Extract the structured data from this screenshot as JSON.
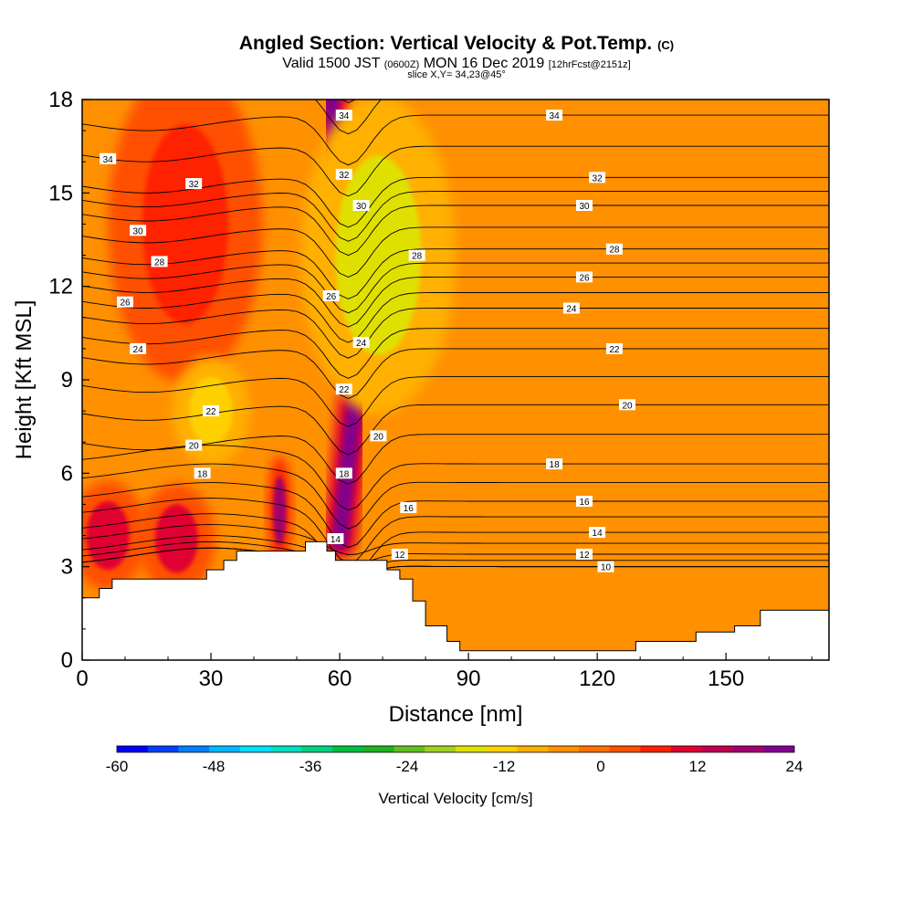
{
  "header": {
    "title_main": "Angled Section: Vertical Velocity & Pot.Temp.",
    "title_tag": "(C)",
    "valid_prefix": "Valid 1500 JST",
    "valid_utc": "(0600Z)",
    "valid_date": "MON 16 Dec 2019",
    "forecast_tag": "[12hrFcst@2151z]",
    "slice_info": "slice X,Y= 34,23@45°"
  },
  "chart_data": {
    "type": "heatmap",
    "xlabel": "Distance [nm]",
    "ylabel": "Height [Kft MSL]",
    "xlim": [
      0,
      174
    ],
    "ylim": [
      0,
      18
    ],
    "x_ticks": [
      0,
      30,
      60,
      90,
      120,
      150
    ],
    "x_tick_labels": [
      "0",
      "30",
      "60",
      "90",
      "120",
      "150"
    ],
    "y_ticks": [
      0,
      3,
      6,
      9,
      12,
      15,
      18
    ],
    "y_tick_labels": [
      "0",
      "3",
      "6",
      "9",
      "12",
      "15",
      "18"
    ],
    "colorbar": {
      "label": "Vertical Velocity [cm/s]",
      "min": -60,
      "max": 24,
      "step": 4,
      "tick_values": [
        -60,
        -48,
        -36,
        -24,
        -12,
        0,
        12,
        24
      ],
      "tick_labels": [
        "-60",
        "-48",
        "-36",
        "-24",
        "-12",
        "0",
        "12",
        "24"
      ],
      "colors": [
        "#0000ff",
        "#0040ff",
        "#0080ff",
        "#00b8ff",
        "#00e0ff",
        "#00e0c0",
        "#00d080",
        "#00c040",
        "#20b020",
        "#60c020",
        "#a0d020",
        "#e0e000",
        "#ffd000",
        "#ffb000",
        "#ff9000",
        "#ff7000",
        "#ff5000",
        "#ff2000",
        "#e00030",
        "#c00050",
        "#a00070",
        "#800090"
      ]
    },
    "background_value": -3,
    "velocity_features": [
      {
        "name": "mountain wave core",
        "path": [
          [
            60,
            3.8
          ],
          [
            64,
            9
          ],
          [
            62,
            12
          ],
          [
            60,
            16
          ],
          [
            58,
            18
          ]
        ],
        "peak": 24,
        "width_nm": 3
      },
      {
        "name": "low-level lee cell A",
        "x": 6,
        "y": 4.0,
        "peak": 13
      },
      {
        "name": "low-level lee cell B",
        "x": 22,
        "y": 3.9,
        "peak": 14
      },
      {
        "name": "low-level cell C",
        "x": 46,
        "y": 4.8,
        "peak": 22
      },
      {
        "name": "upper upward column",
        "x": 24,
        "y": 14,
        "peak": 10
      },
      {
        "name": "weak descent wedge",
        "x": 30,
        "y": 8,
        "peak": -12
      },
      {
        "name": "descent east of core",
        "x": 69,
        "y": 13,
        "peak": -14
      }
    ],
    "terrain": [
      [
        0,
        2.0
      ],
      [
        4,
        2.0
      ],
      [
        4,
        2.3
      ],
      [
        7,
        2.3
      ],
      [
        7,
        2.6
      ],
      [
        29,
        2.6
      ],
      [
        29,
        2.9
      ],
      [
        33,
        2.9
      ],
      [
        33,
        3.2
      ],
      [
        36,
        3.2
      ],
      [
        36,
        3.5
      ],
      [
        52,
        3.5
      ],
      [
        52,
        3.8
      ],
      [
        57,
        3.8
      ],
      [
        57,
        3.5
      ],
      [
        59,
        3.5
      ],
      [
        59,
        3.2
      ],
      [
        71,
        3.2
      ],
      [
        71,
        2.9
      ],
      [
        74,
        2.9
      ],
      [
        74,
        2.6
      ],
      [
        77,
        2.6
      ],
      [
        77,
        1.9
      ],
      [
        80,
        1.9
      ],
      [
        80,
        1.1
      ],
      [
        85,
        1.1
      ],
      [
        85,
        0.6
      ],
      [
        88,
        0.6
      ],
      [
        88,
        0.3
      ],
      [
        129,
        0.3
      ],
      [
        129,
        0.6
      ],
      [
        143,
        0.6
      ],
      [
        143,
        0.9
      ],
      [
        152,
        0.9
      ],
      [
        152,
        1.1
      ],
      [
        158,
        1.1
      ],
      [
        158,
        1.6
      ],
      [
        174,
        1.6
      ]
    ],
    "theta_contour_labels": [
      {
        "value": "34",
        "x": 6,
        "y": 16.1
      },
      {
        "value": "34",
        "x": 61,
        "y": 17.5
      },
      {
        "value": "34",
        "x": 110,
        "y": 17.5
      },
      {
        "value": "32",
        "x": 26,
        "y": 15.3
      },
      {
        "value": "32",
        "x": 61,
        "y": 15.6
      },
      {
        "value": "32",
        "x": 120,
        "y": 15.5
      },
      {
        "value": "30",
        "x": 13,
        "y": 13.8
      },
      {
        "value": "30",
        "x": 65,
        "y": 14.6
      },
      {
        "value": "30",
        "x": 117,
        "y": 14.6
      },
      {
        "value": "28",
        "x": 18,
        "y": 12.8
      },
      {
        "value": "28",
        "x": 78,
        "y": 13.0
      },
      {
        "value": "28",
        "x": 124,
        "y": 13.2
      },
      {
        "value": "26",
        "x": 10,
        "y": 11.5
      },
      {
        "value": "26",
        "x": 58,
        "y": 11.7
      },
      {
        "value": "26",
        "x": 117,
        "y": 12.3
      },
      {
        "value": "24",
        "x": 13,
        "y": 10.0
      },
      {
        "value": "24",
        "x": 65,
        "y": 10.2
      },
      {
        "value": "24",
        "x": 114,
        "y": 11.3
      },
      {
        "value": "22",
        "x": 30,
        "y": 8.0
      },
      {
        "value": "22",
        "x": 61,
        "y": 8.7
      },
      {
        "value": "22",
        "x": 124,
        "y": 10.0
      },
      {
        "value": "20",
        "x": 26,
        "y": 6.9
      },
      {
        "value": "20",
        "x": 69,
        "y": 7.2
      },
      {
        "value": "20",
        "x": 127,
        "y": 8.2
      },
      {
        "value": "18",
        "x": 28,
        "y": 6.0
      },
      {
        "value": "18",
        "x": 61,
        "y": 6.0
      },
      {
        "value": "18",
        "x": 110,
        "y": 6.3
      },
      {
        "value": "16",
        "x": 76,
        "y": 4.9
      },
      {
        "value": "16",
        "x": 117,
        "y": 5.1
      },
      {
        "value": "14",
        "x": 59,
        "y": 3.9
      },
      {
        "value": "14",
        "x": 120,
        "y": 4.1
      },
      {
        "value": "12",
        "x": 74,
        "y": 3.4
      },
      {
        "value": "12",
        "x": 117,
        "y": 3.4
      },
      {
        "value": "10",
        "x": 122,
        "y": 3.0
      }
    ]
  }
}
